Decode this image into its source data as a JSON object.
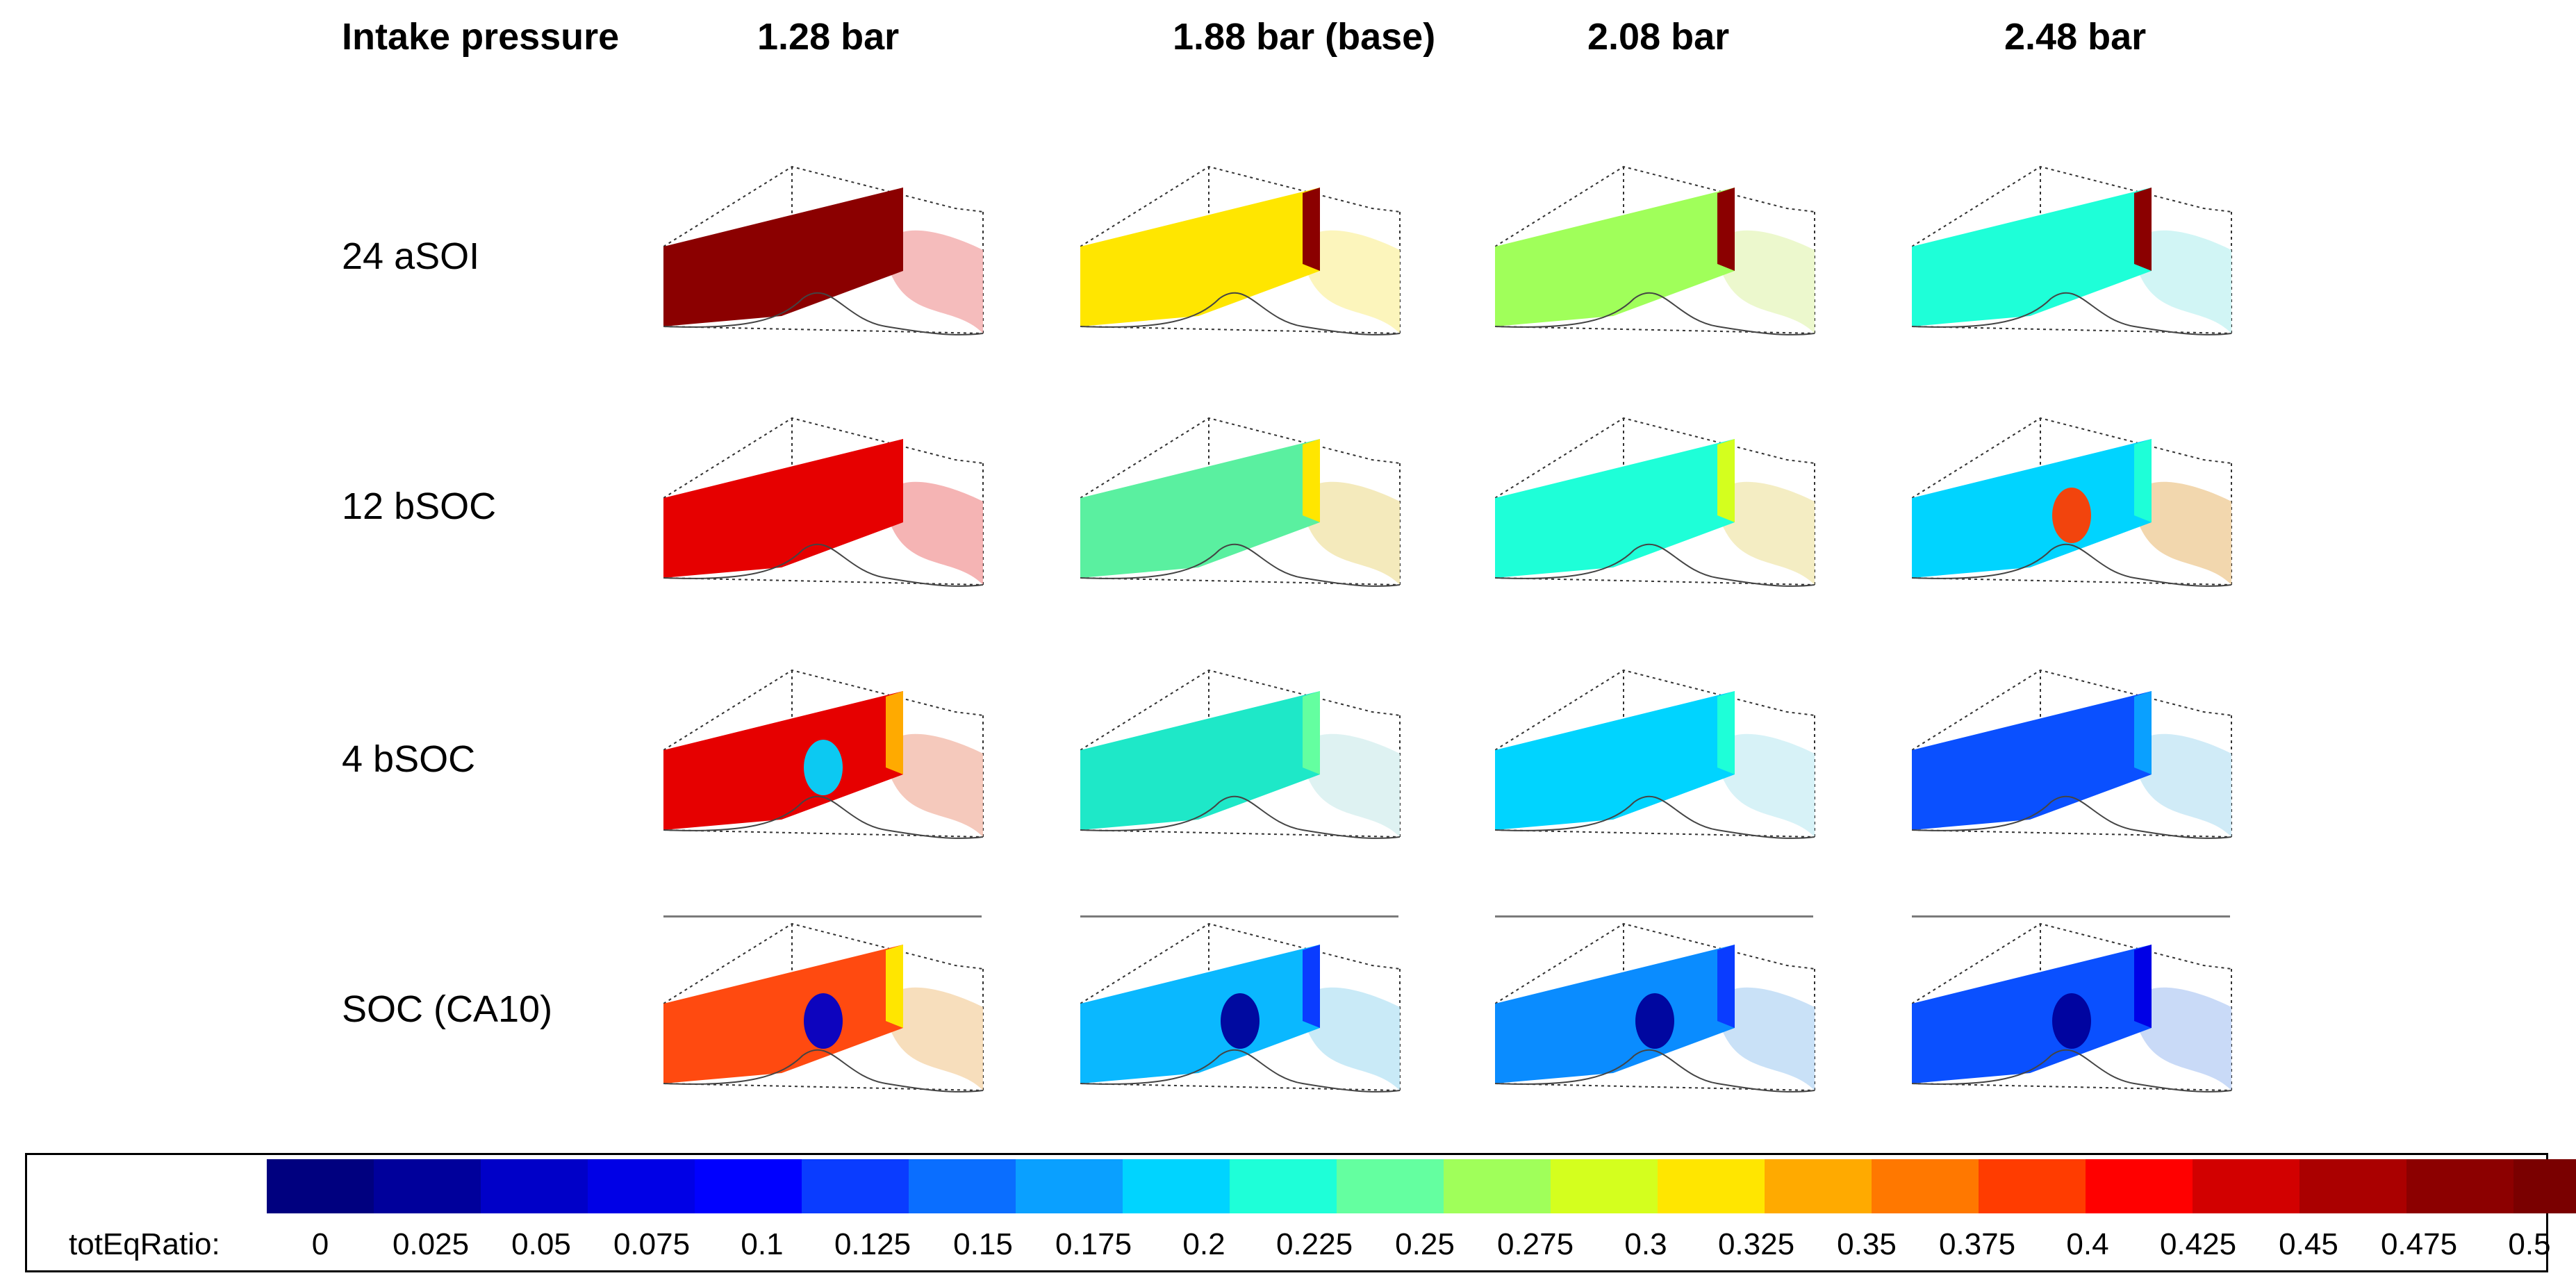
{
  "header": {
    "row_title": "Intake pressure",
    "columns": [
      "1.28 bar",
      "1.88 bar (base)",
      "2.08 bar",
      "2.48 bar"
    ]
  },
  "rows": [
    "24 aSOI",
    "12 bSOC",
    "4 bSOC",
    "SOC (CA10)"
  ],
  "legend": {
    "name": "totEqRatio:",
    "ticks": [
      "0",
      "0.025",
      "0.05",
      "0.075",
      "0.1",
      "0.125",
      "0.15",
      "0.175",
      "0.2",
      "0.225",
      "0.25",
      "0.275",
      "0.3",
      "0.325",
      "0.35",
      "0.375",
      "0.4",
      "0.425",
      "0.45",
      "0.475",
      "0.5"
    ],
    "colors": [
      "#00007f",
      "#00009b",
      "#0000c8",
      "#0000e6",
      "#0000ff",
      "#0a3cff",
      "#0a6eff",
      "#0aa0ff",
      "#00d4ff",
      "#1effd8",
      "#64ffa0",
      "#a0ff5a",
      "#d4ff1e",
      "#ffe600",
      "#ffaa00",
      "#ff7800",
      "#ff3c00",
      "#ff0000",
      "#d20000",
      "#aa0000",
      "#8c0000",
      "#7a0000"
    ]
  },
  "cells": [
    [
      {
        "fill": "#8b0000",
        "glow": "#8b0000",
        "blob": "",
        "plume": "#f3b0b0"
      },
      {
        "fill": "#ffe600",
        "glow": "#8b0000",
        "blob": "",
        "plume": "#fbf3b0"
      },
      {
        "fill": "#a0ff5a",
        "glow": "#8b0000",
        "blob": "",
        "plume": "#e9f7c4"
      },
      {
        "fill": "#1effd8",
        "glow": "#8b0000",
        "blob": "",
        "plume": "#c9f3f3"
      }
    ],
    [
      {
        "fill": "#e60000",
        "glow": "#e60000",
        "blob": "",
        "plume": "#f3a7a7"
      },
      {
        "fill": "#5af0a0",
        "glow": "#ffe600",
        "blob": "",
        "plume": "#f2e6b0"
      },
      {
        "fill": "#1effd8",
        "glow": "#d4ff1e",
        "blob": "",
        "plume": "#f2eab8"
      },
      {
        "fill": "#00d4ff",
        "glow": "#1effd8",
        "blob": "#ff3c00",
        "plume": "#f0d0a0"
      }
    ],
    [
      {
        "fill": "#e60000",
        "glow": "#ffaa00",
        "blob": "#00d4ff",
        "plume": "#f3c0b0"
      },
      {
        "fill": "#1ee8c8",
        "glow": "#64ffa0",
        "blob": "",
        "plume": "#d8f0f0"
      },
      {
        "fill": "#00d4ff",
        "glow": "#1effd8",
        "blob": "",
        "plume": "#d0f0f6"
      },
      {
        "fill": "#0a50ff",
        "glow": "#0aa0ff",
        "blob": "",
        "plume": "#c8e8f6"
      }
    ],
    [
      {
        "fill": "#ff4a10",
        "glow": "#ffe600",
        "blob": "#0000c8",
        "plume": "#f6d8b0"
      },
      {
        "fill": "#0ab8ff",
        "glow": "#0a3cff",
        "blob": "#00009b",
        "plume": "#c0e6f6"
      },
      {
        "fill": "#0a8cff",
        "glow": "#0a3cff",
        "blob": "#00009b",
        "plume": "#c0dcf6"
      },
      {
        "fill": "#0a50ff",
        "glow": "#0000e6",
        "blob": "#00009b",
        "plume": "#c0d4f6"
      }
    ]
  ]
}
